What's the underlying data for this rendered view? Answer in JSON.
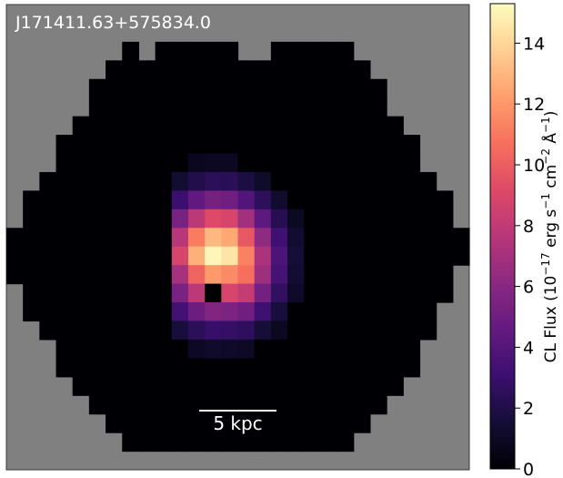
{
  "chart_data": {
    "type": "heatmap",
    "title": "J171411.63+575834.0",
    "scale_bar": {
      "label": "5 kpc"
    },
    "background_color": "#808080",
    "colormap": "magma",
    "colorbar": {
      "label_prefix": "CL Flux (10",
      "label_exp1": "−17",
      "label_mid1": " erg s",
      "label_exp2": "−1",
      "label_mid2": " cm",
      "label_exp3": "−2",
      "label_mid3": " Å",
      "label_exp4": "−1",
      "label_suffix": ")",
      "vmin": 0,
      "vmax": 15.3,
      "ticks": [
        0,
        2,
        4,
        6,
        8,
        10,
        12,
        14
      ],
      "tick_labels": [
        "0",
        "2",
        "4",
        "6",
        "8",
        "10",
        "12",
        "14"
      ]
    },
    "grid": {
      "rows": 25,
      "cols": 28
    },
    "footprint_row_ranges": [
      [
        null,
        null
      ],
      [
        null,
        null
      ],
      [
        7,
        20
      ],
      [
        6,
        21
      ],
      [
        5,
        22
      ],
      [
        5,
        22
      ],
      [
        4,
        23
      ],
      [
        3,
        24
      ],
      [
        3,
        24
      ],
      [
        2,
        25
      ],
      [
        1,
        26
      ],
      [
        1,
        26
      ],
      [
        0,
        27
      ],
      [
        0,
        27
      ],
      [
        0,
        26
      ],
      [
        1,
        26
      ],
      [
        1,
        25
      ],
      [
        2,
        25
      ],
      [
        3,
        24
      ],
      [
        3,
        24
      ],
      [
        4,
        23
      ],
      [
        5,
        22
      ],
      [
        6,
        21
      ],
      [
        7,
        20
      ],
      [
        null,
        null
      ]
    ],
    "footprint_notches": [
      [
        2,
        8
      ],
      [
        2,
        14
      ],
      [
        2,
        15
      ]
    ],
    "emission": {
      "center": [
        13.7,
        12.8
      ],
      "peak": 15.3,
      "sigma": 2.2,
      "support_rows": [
        8,
        18
      ],
      "support_cols": [
        10,
        18
      ],
      "mask_pixels": [
        [
          15,
          12
        ]
      ]
    }
  }
}
